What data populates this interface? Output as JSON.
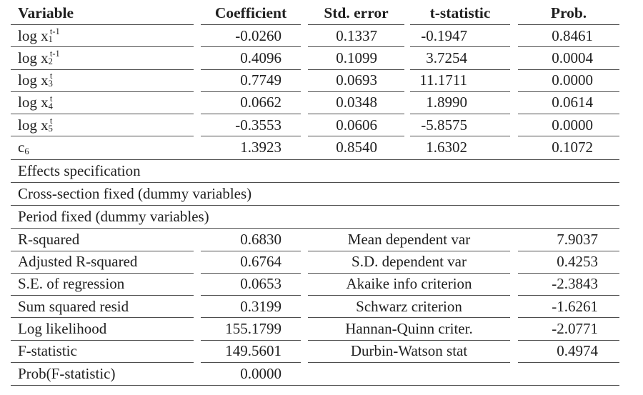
{
  "table": {
    "headers": [
      "Variable",
      "Coefficient",
      "Std. error",
      "t-statistic",
      "Prob."
    ],
    "coef_rows": [
      {
        "var_base": "log x",
        "var_sub": "1",
        "var_sup": "t-1",
        "coefficient": "-0.0260",
        "std_error": "0.1337",
        "t_statistic": "-0.1947",
        "prob": "0.8461"
      },
      {
        "var_base": "log x",
        "var_sub": "2",
        "var_sup": "t-1",
        "coefficient": "0.4096",
        "std_error": "0.1099",
        "t_statistic": "3.7254",
        "prob": "0.0004"
      },
      {
        "var_base": "log x",
        "var_sub": "3",
        "var_sup": "t",
        "coefficient": "0.7749",
        "std_error": "0.0693",
        "t_statistic": "11.1711",
        "prob": "0.0000"
      },
      {
        "var_base": "log x",
        "var_sub": "4",
        "var_sup": "t",
        "coefficient": "0.0662",
        "std_error": "0.0348",
        "t_statistic": "1.8990",
        "prob": "0.0614"
      },
      {
        "var_base": "log x",
        "var_sub": "5",
        "var_sup": "t",
        "coefficient": "-0.3553",
        "std_error": "0.0606",
        "t_statistic": "-5.8575",
        "prob": "0.0000"
      },
      {
        "var_base": "c",
        "var_sub": "6",
        "var_sup": "",
        "coefficient": "1.3923",
        "std_error": "0.8540",
        "t_statistic": "1.6302",
        "prob": "0.1072"
      }
    ],
    "section_rows": [
      "Effects specification",
      "Cross-section fixed (dummy variables)",
      "Period fixed (dummy variables)"
    ],
    "stats_rows": [
      {
        "label": "R-squared",
        "value": "0.6830",
        "label2": "Mean dependent var",
        "value2": "7.9037"
      },
      {
        "label": "Adjusted R-squared",
        "value": "0.6764",
        "label2": "S.D. dependent var",
        "value2": "0.4253"
      },
      {
        "label": "S.E. of regression",
        "value": "0.0653",
        "label2": "Akaike info criterion",
        "value2": "-2.3843"
      },
      {
        "label": "Sum squared resid",
        "value": "0.3199",
        "label2": "Schwarz criterion",
        "value2": "-1.6261"
      },
      {
        "label": "Log likelihood",
        "value": "155.1799",
        "label2": "Hannan-Quinn criter.",
        "value2": "-2.0771"
      },
      {
        "label": "F-statistic",
        "value": "149.5601",
        "label2": "Durbin-Watson stat",
        "value2": "0.4974"
      },
      {
        "label": "Prob(F-statistic)",
        "value": "0.0000",
        "label2": "",
        "value2": ""
      }
    ],
    "colors": {
      "text": "#1f1f1f",
      "line": "#4d4d4d",
      "background": "#ffffff"
    }
  }
}
